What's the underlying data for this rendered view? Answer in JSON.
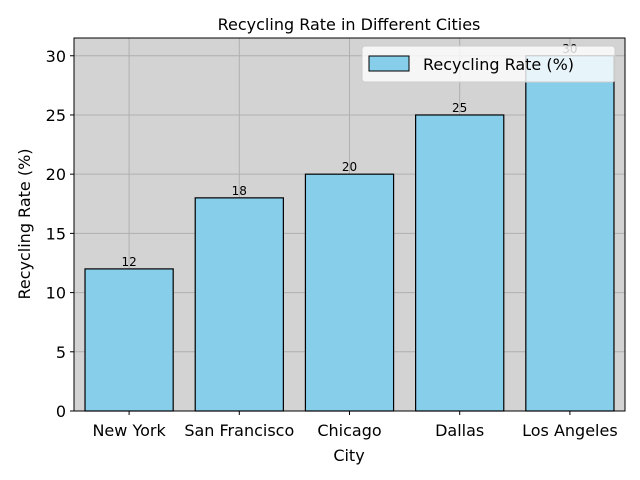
{
  "chart_data": {
    "type": "bar",
    "title": "Recycling Rate in Different Cities",
    "xlabel": "City",
    "ylabel": "Recycling Rate (%)",
    "categories": [
      "New York",
      "San Francisco",
      "Chicago",
      "Dallas",
      "Los Angeles"
    ],
    "series": [
      {
        "name": "Recycling Rate (%)",
        "values": [
          12,
          18,
          20,
          25,
          30
        ]
      }
    ],
    "data_labels": [
      "12",
      "18",
      "20",
      "25",
      "30"
    ],
    "ylim": [
      0,
      31.5
    ],
    "yticks": [
      0,
      5,
      10,
      15,
      20,
      25,
      30
    ],
    "ytick_labels": [
      "0",
      "5",
      "10",
      "15",
      "20",
      "25",
      "30"
    ],
    "grid": true,
    "legend_position": "top-right",
    "colors": {
      "bar_fill": "#87ceeb",
      "bar_edge": "#000000",
      "plot_background": "#d3d3d3",
      "grid": "#b0b0b0"
    }
  }
}
